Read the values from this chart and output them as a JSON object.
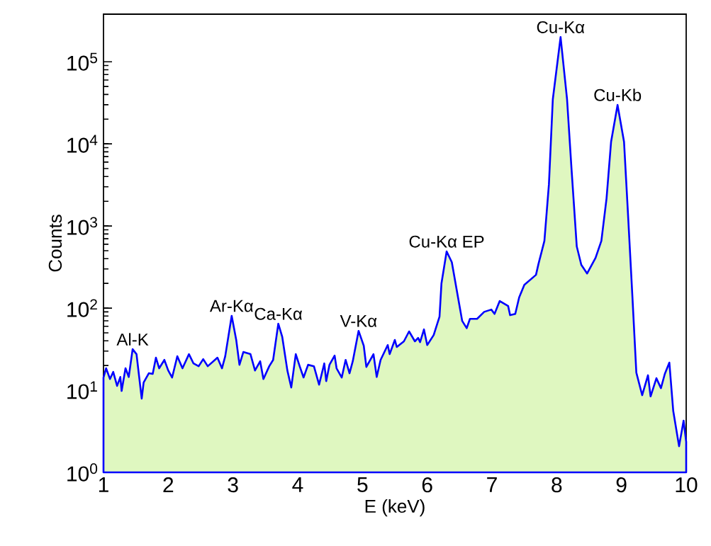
{
  "chart_data": {
    "type": "area",
    "xlabel": "E (keV)",
    "ylabel": "Counts",
    "log": "y",
    "xlim": [
      1,
      10
    ],
    "xticks": [
      1,
      2,
      3,
      4,
      5,
      6,
      7,
      8,
      9,
      10
    ],
    "ylim": [
      1,
      380000
    ],
    "yticks": [
      {
        "value": 1,
        "label": "10$^{0}$"
      },
      {
        "value": 10,
        "label": "10$^{1}$"
      },
      {
        "value": 100,
        "label": "10$^{2}$"
      },
      {
        "value": 1000,
        "label": "10$^{3}$"
      },
      {
        "value": 10000,
        "label": "10$^{4}$"
      },
      {
        "value": 100000,
        "label": "10$^{5}$"
      }
    ],
    "series": [
      {
        "color": "#0000ff",
        "x": [
          1.0,
          1.0,
          1.04,
          1.1,
          1.15,
          1.21,
          1.26,
          1.28,
          1.34,
          1.39,
          1.45,
          1.51,
          1.59,
          1.62,
          1.7,
          1.76,
          1.81,
          1.86,
          1.94,
          2.0,
          2.06,
          2.14,
          2.22,
          2.32,
          2.39,
          2.47,
          2.54,
          2.61,
          2.76,
          2.83,
          2.88,
          2.98,
          3.05,
          3.1,
          3.16,
          3.27,
          3.34,
          3.42,
          3.47,
          3.56,
          3.62,
          3.7,
          3.76,
          3.84,
          3.9,
          3.97,
          4.03,
          4.09,
          4.16,
          4.25,
          4.33,
          4.41,
          4.44,
          4.49,
          4.57,
          4.6,
          4.68,
          4.74,
          4.8,
          4.85,
          4.94,
          5.02,
          5.06,
          5.17,
          5.22,
          5.28,
          5.39,
          5.42,
          5.5,
          5.53,
          5.64,
          5.72,
          5.81,
          5.86,
          5.89,
          5.95,
          6.0,
          6.1,
          6.19,
          6.22,
          6.3,
          6.38,
          6.49,
          6.54,
          6.61,
          6.66,
          6.77,
          6.88,
          6.99,
          7.04,
          7.12,
          7.25,
          7.28,
          7.36,
          7.42,
          7.5,
          7.68,
          7.72,
          7.81,
          7.88,
          7.94,
          8.06,
          8.16,
          8.23,
          8.31,
          8.38,
          8.47,
          8.6,
          8.69,
          8.77,
          8.84,
          8.94,
          9.04,
          9.1,
          9.17,
          9.23,
          9.32,
          9.41,
          9.45,
          9.54,
          9.61,
          9.67,
          9.74,
          9.8,
          9.89,
          9.96,
          10.0,
          10.0
        ],
        "values": [
          1,
          14.3,
          18.5,
          13.7,
          16.7,
          11.3,
          14.5,
          9.8,
          18.5,
          14.5,
          31.6,
          27.5,
          7.9,
          12.4,
          16.1,
          15.8,
          24.9,
          18.5,
          23.4,
          17.4,
          14.3,
          25.9,
          18.5,
          27.5,
          21.2,
          19.6,
          23.9,
          19.6,
          24.9,
          18.5,
          25.9,
          80.6,
          41,
          20.4,
          29.2,
          27.5,
          17.4,
          22.5,
          13.7,
          19.6,
          23.4,
          64.5,
          45,
          17.4,
          10.8,
          27.5,
          19.6,
          14.3,
          20.4,
          19.6,
          11.7,
          21.2,
          12.9,
          20.4,
          26.4,
          18.5,
          14.3,
          23.4,
          16.1,
          22.5,
          52.8,
          34.8,
          19.2,
          27.5,
          14.5,
          23.4,
          35.5,
          27.5,
          41,
          33.6,
          39.4,
          52,
          39.4,
          43.4,
          38.5,
          55,
          35.5,
          47,
          78.6,
          200,
          490,
          362,
          117,
          69.9,
          57,
          74,
          74,
          90,
          96,
          85,
          122,
          106,
          82,
          85,
          135,
          192,
          254,
          349,
          659,
          3227,
          34900,
          200000,
          34900,
          4800,
          563,
          336,
          264,
          409,
          659,
          2170,
          10600,
          29800,
          10600,
          1460,
          135,
          16.4,
          8.7,
          15.2,
          8.4,
          14,
          10.6,
          15.8,
          21.7,
          5.6,
          2.08,
          4.26,
          2.35,
          1
        ]
      }
    ],
    "annotations": [
      {
        "text": "Al-K",
        "x": 1.45,
        "y": 31.6
      },
      {
        "text": "Ar-Kα",
        "x": 2.98,
        "y": 80.6
      },
      {
        "text": "Ca-Kα",
        "x": 3.7,
        "y": 64.5
      },
      {
        "text": "V-Kα",
        "x": 4.94,
        "y": 52.8
      },
      {
        "text": "Cu-Kα EP",
        "x": 6.3,
        "y": 490
      },
      {
        "text": "Cu-Kα",
        "x": 8.06,
        "y": 200000
      },
      {
        "text": "Cu-Kb",
        "x": 8.94,
        "y": 29800
      }
    ]
  }
}
